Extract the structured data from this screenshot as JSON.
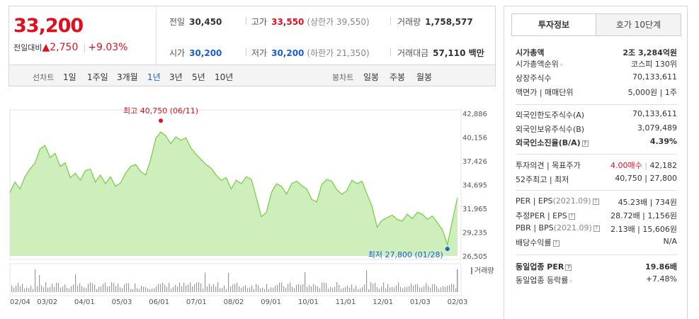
{
  "quote": {
    "price": "33,200",
    "change_label": "전일대비",
    "change_arrow": "▲",
    "change_amount": "2,750",
    "change_pct": "+9.03%",
    "prev_label": "전일",
    "prev_value": "30,450",
    "high_label": "고가",
    "high_value": "33,550",
    "upper_limit": "(상한가 39,550)",
    "volume_label": "거래량",
    "volume_value": "1,758,577",
    "open_label": "시가",
    "open_value": "30,200",
    "low_label": "저가",
    "low_value": "30,200",
    "lower_limit": "(하한가 21,350)",
    "amount_label": "거래대금",
    "amount_value": "57,110 백만"
  },
  "range_bar": {
    "line_label": "선차트",
    "ranges": [
      "1일",
      "1주일",
      "3개월",
      "1년",
      "3년",
      "5년",
      "10년"
    ],
    "active_range": "1년",
    "candle_label": "봉차트",
    "candles": [
      "일봉",
      "주봉",
      "월봉"
    ]
  },
  "chart_data": {
    "type": "area",
    "x_start": "2021-02-04",
    "x_end": "2022-02-03",
    "x_tick_labels": [
      "02/04",
      "03/02",
      "04/01",
      "05/03",
      "06/01",
      "07/01",
      "08/02",
      "09/01",
      "10/01",
      "11/01",
      "12/01",
      "01/03",
      "02/03"
    ],
    "y_tick_labels": [
      "42,886",
      "40,156",
      "37,426",
      "34,695",
      "31,965",
      "29,235",
      "26,505"
    ],
    "ylim": [
      26505,
      42886
    ],
    "prices": [
      33800,
      35000,
      34200,
      35600,
      36500,
      37200,
      38800,
      39200,
      37800,
      38300,
      36800,
      37200,
      35500,
      36000,
      35200,
      36300,
      36500,
      35000,
      35800,
      34800,
      35600,
      34500,
      34900,
      36000,
      36800,
      37000,
      36200,
      35800,
      37600,
      40000,
      40750,
      40300,
      39400,
      40200,
      39800,
      40100,
      38900,
      38200,
      37600,
      37000,
      36600,
      35800,
      35200,
      35500,
      34200,
      35200,
      34800,
      35600,
      35300,
      33200,
      31000,
      31500,
      33800,
      34800,
      34500,
      33600,
      34800,
      35100,
      34600,
      34200,
      33000,
      32700,
      34700,
      35300,
      35100,
      34100,
      33600,
      34000,
      35200,
      34800,
      35100,
      33600,
      32200,
      29800,
      30600,
      30900,
      31200,
      30700,
      30500,
      31300,
      30800,
      31500,
      31300,
      30700,
      31100,
      30300,
      29500,
      27800,
      30600,
      33200
    ],
    "high": {
      "label": "최고 40,750 (06/11)",
      "value": 40750
    },
    "low": {
      "label": "최저 27,800 (01/28)",
      "value": 27800
    },
    "volume_legend": "거래량",
    "line_color": "#7dce4c",
    "fill_color": "#c5ecb0",
    "high_marker_color": "#e01020",
    "low_marker_color": "#1a5dd6"
  },
  "panel": {
    "tab_invest": "투자정보",
    "tab_order": "호가 10단계",
    "market_cap_label": "시가총액",
    "market_cap_value": "2조 3,284억원",
    "cap_rank_label": "시가총액순위",
    "cap_rank_value": "코스피 130위",
    "shares_label": "상장주식수",
    "shares_value": "70,133,611",
    "par_label": "액면가 | 매매단위",
    "par_value": "5,000원 | 1주",
    "foreign_limit_label": "외국인한도주식수(A)",
    "foreign_limit_value": "70,133,611",
    "foreign_hold_label": "외국인보유주식수(B)",
    "foreign_hold_value": "3,079,489",
    "foreign_ratio_label": "외국인소진율(B/A)",
    "foreign_ratio_value": "4.39%",
    "opinion_label": "투자의견 | 목표주가",
    "opinion_value": "4.00매수",
    "target_value": "42,182",
    "w52_label": "52주최고 | 최저",
    "w52_value": "40,750 | 27,800",
    "per_label": "PER | EPS",
    "per_year": "(2021.09)",
    "per_value": "45.23배 | 734원",
    "est_per_label": "추정PER | EPS",
    "est_per_value": "28.72배 | 1,156원",
    "pbr_label": "PBR | BPS",
    "pbr_year": "(2021.09)",
    "pbr_value": "2.13배 | 15,606원",
    "div_label": "배당수익률",
    "div_value": "N/A",
    "ind_per_label": "동일업종 PER",
    "ind_per_value": "19.86배",
    "ind_change_label": "동일업종 등락률",
    "ind_change_value": "+7.48%"
  }
}
